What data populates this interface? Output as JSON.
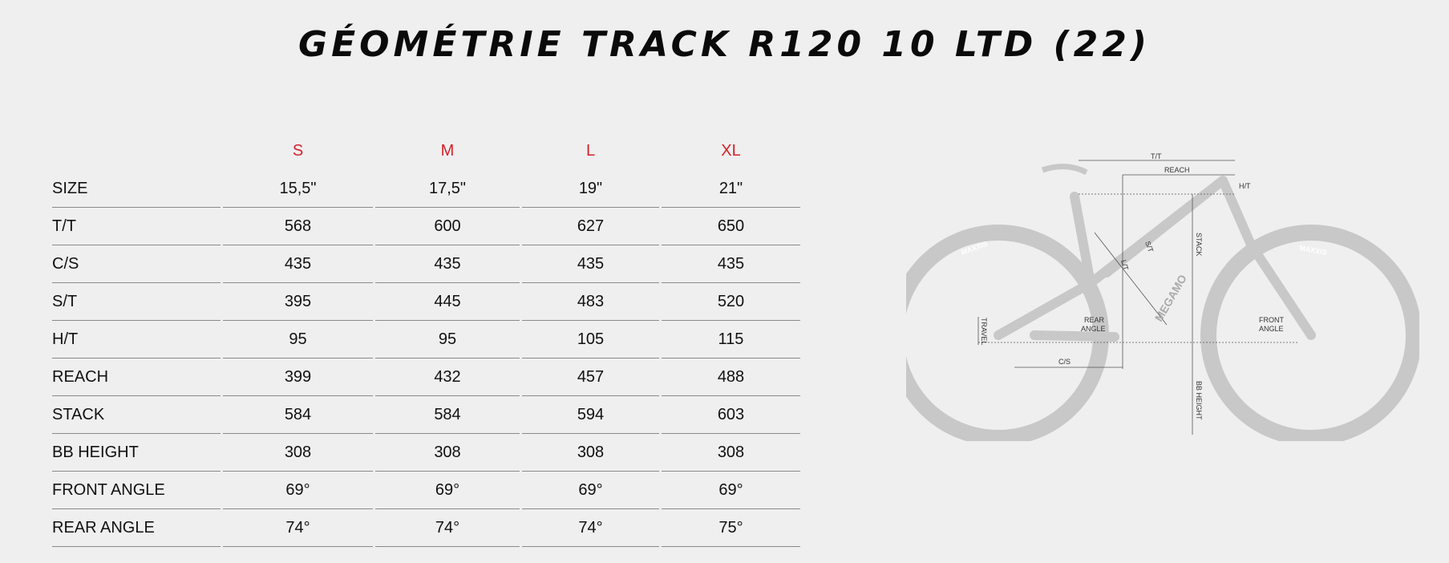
{
  "title": "GÉOMÉTRIE TRACK R120 10 LTD (22)",
  "table": {
    "columns": [
      "S",
      "M",
      "L",
      "XL"
    ],
    "rows": [
      {
        "label": "SIZE",
        "values": [
          "15,5\"",
          "17,5\"",
          "19\"",
          "21\""
        ]
      },
      {
        "label": "T/T",
        "values": [
          "568",
          "600",
          "627",
          "650"
        ]
      },
      {
        "label": "C/S",
        "values": [
          "435",
          "435",
          "435",
          "435"
        ]
      },
      {
        "label": "S/T",
        "values": [
          "395",
          "445",
          "483",
          "520"
        ]
      },
      {
        "label": "H/T",
        "values": [
          "95",
          "95",
          "105",
          "115"
        ]
      },
      {
        "label": "REACH",
        "values": [
          "399",
          "432",
          "457",
          "488"
        ]
      },
      {
        "label": "STACK",
        "values": [
          "584",
          "584",
          "594",
          "603"
        ]
      },
      {
        "label": "BB HEIGHT",
        "values": [
          "308",
          "308",
          "308",
          "308"
        ]
      },
      {
        "label": "FRONT ANGLE",
        "values": [
          "69°",
          "69°",
          "69°",
          "69°"
        ]
      },
      {
        "label": "REAR ANGLE",
        "values": [
          "74°",
          "74°",
          "74°",
          "75°"
        ]
      }
    ]
  },
  "diagram": {
    "labels": {
      "tt": "T/T",
      "reach": "REACH",
      "ht": "H/T",
      "st": "S/T",
      "lt": "L/T",
      "stack": "STACK",
      "travel": "TRAVEL",
      "rear_angle_1": "REAR",
      "rear_angle_2": "ANGLE",
      "front_angle_1": "FRONT",
      "front_angle_2": "ANGLE",
      "cs": "C/S",
      "bb": "BB HEIGHT",
      "tire_left": "MAXXIS",
      "tire_right": "MAXXIS",
      "brand": "MEGAMO"
    },
    "colors": {
      "header": "#d4202a",
      "bike": "#c8c8c8"
    }
  }
}
